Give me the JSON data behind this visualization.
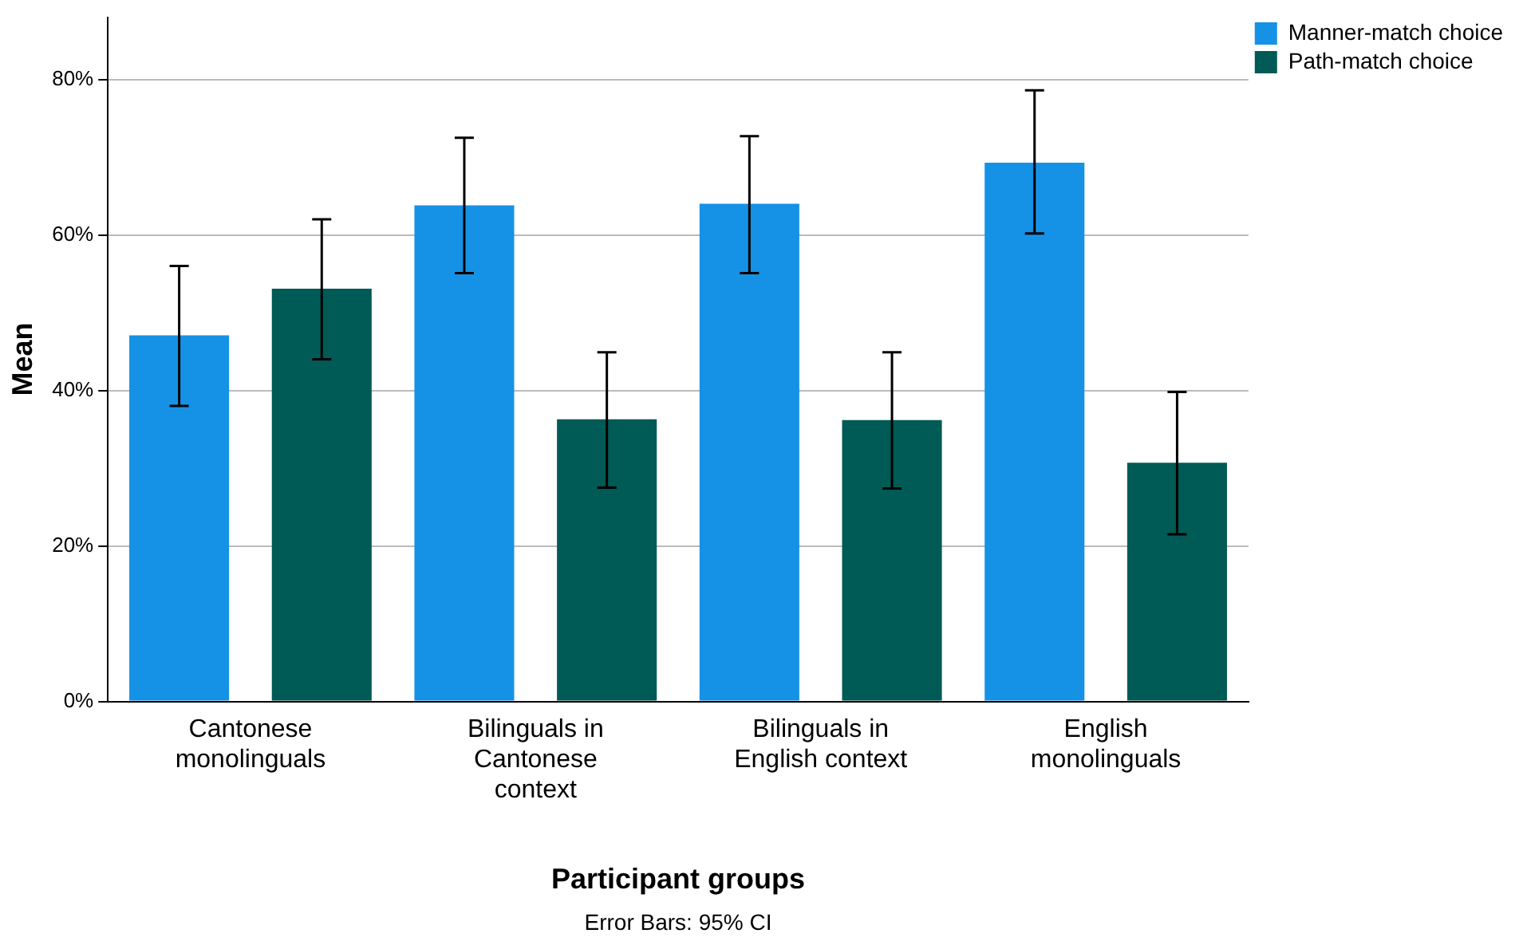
{
  "chart_data": {
    "type": "bar",
    "xlabel": "Participant groups",
    "ylabel": "Mean",
    "categories": [
      "Cantonese monolinguals",
      "Bilinguals in Cantonese context",
      "Bilinguals in English context",
      "English monolinguals"
    ],
    "series": [
      {
        "name": "Manner-match choice",
        "color": "#1592e6",
        "values": [
          47.1,
          63.8,
          64,
          69.3
        ],
        "errors": [
          [
            38,
            56
          ],
          [
            55.1,
            72.5
          ],
          [
            55.1,
            72.7
          ],
          [
            60.2,
            78.6
          ]
        ]
      },
      {
        "name": "Path-match choice",
        "color": "#005a55",
        "values": [
          53.1,
          36.3,
          36.2,
          30.7
        ],
        "errors": [
          [
            44,
            62
          ],
          [
            27.5,
            44.9
          ],
          [
            27.4,
            44.9
          ],
          [
            21.5,
            39.8
          ]
        ]
      }
    ],
    "ylim": [
      0,
      88
    ],
    "yticks": [
      {
        "value": 0,
        "label": "0%"
      },
      {
        "value": 20,
        "label": "20%"
      },
      {
        "value": 40,
        "label": "40%"
      },
      {
        "value": 60,
        "label": "60%"
      },
      {
        "value": 80,
        "label": "80%"
      }
    ],
    "grid": "y",
    "legend": "top right",
    "annotations": [
      "Error Bars: 95% CI"
    ]
  }
}
